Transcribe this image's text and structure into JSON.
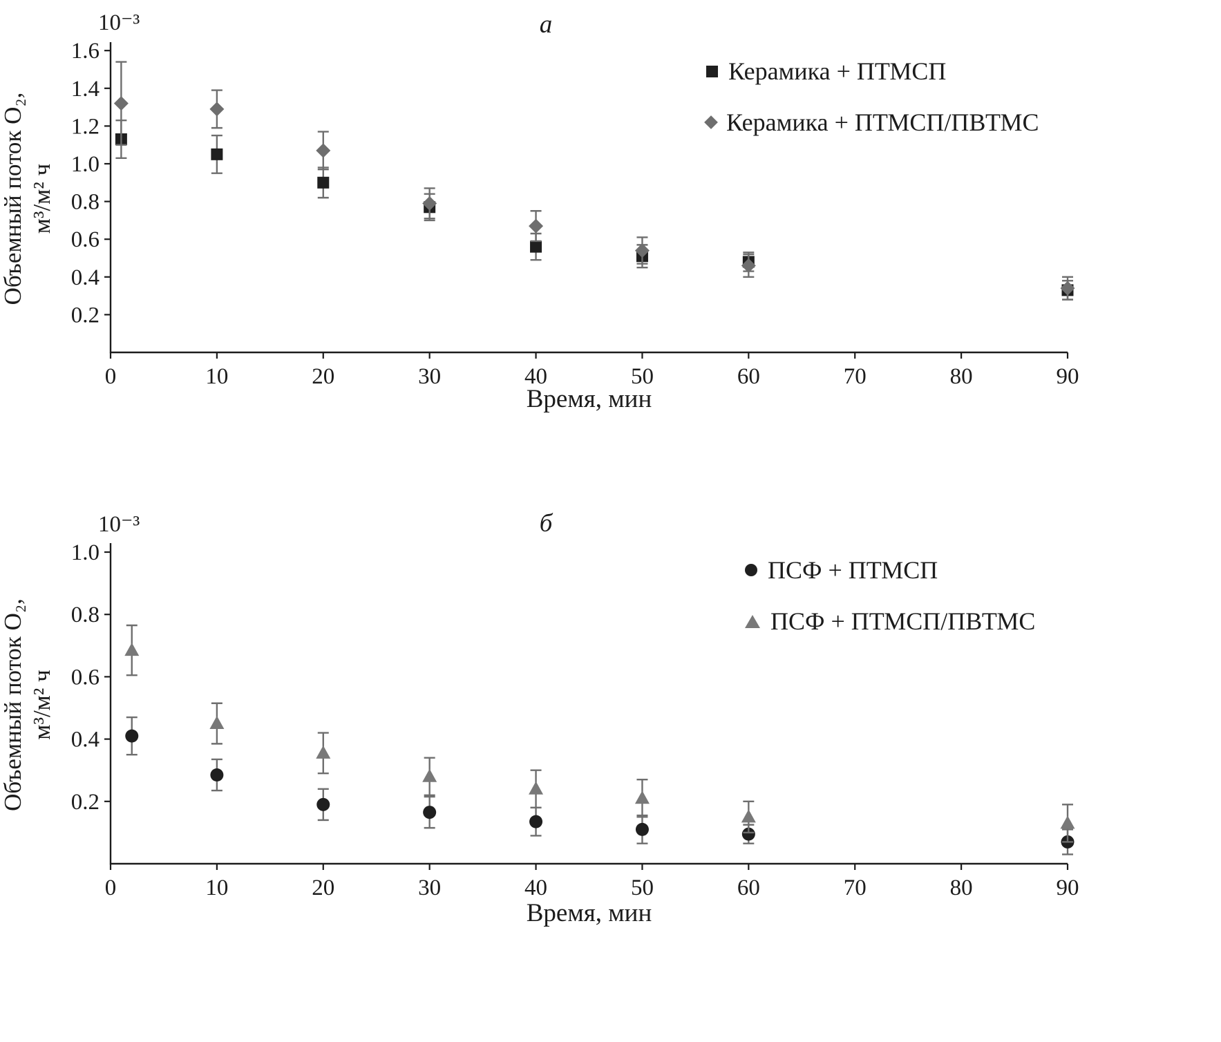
{
  "style": {
    "background": "#ffffff",
    "axis_color": "#1c1c1c",
    "error_bar_color": "#6e6e6e"
  },
  "chart_data": [
    {
      "type": "scatter",
      "title": "а",
      "xlabel": "Время, мин",
      "ylabel_line1": "Объемный поток O₂,",
      "ylabel_line2": "м³/м² ч",
      "y_scale_label": "10⁻³",
      "xlim": [
        0,
        90
      ],
      "ylim": [
        0,
        1.63
      ],
      "xticks": [
        0,
        10,
        20,
        30,
        40,
        50,
        60,
        70,
        80,
        90
      ],
      "yticks": [
        0.2,
        0.4,
        0.6,
        0.8,
        1.0,
        1.2,
        1.4,
        1.6
      ],
      "x": [
        1,
        10,
        20,
        30,
        40,
        50,
        60,
        90
      ],
      "grid": false,
      "legend_position": "top-right",
      "series": [
        {
          "name": "Керамика + ПТМСП",
          "marker": "square",
          "color": "#1f1f1f",
          "values": [
            1.13,
            1.05,
            0.9,
            0.77,
            0.56,
            0.51,
            0.48,
            0.33
          ],
          "errors": [
            0.1,
            0.1,
            0.08,
            0.07,
            0.07,
            0.06,
            0.05,
            0.05
          ]
        },
        {
          "name": "Керамика + ПТМСП/ПВТМС",
          "marker": "diamond",
          "color": "#6e6e6e",
          "values": [
            1.32,
            1.29,
            1.07,
            0.79,
            0.67,
            0.54,
            0.46,
            0.34
          ],
          "errors": [
            0.22,
            0.1,
            0.1,
            0.08,
            0.08,
            0.07,
            0.06,
            0.06
          ]
        }
      ]
    },
    {
      "type": "scatter",
      "title": "б",
      "xlabel": "Время, мин",
      "ylabel_line1": "Объемный поток O₂,",
      "ylabel_line2": "м³/м² ч",
      "y_scale_label": "10⁻³",
      "xlim": [
        0,
        90
      ],
      "ylim": [
        0,
        1.02
      ],
      "xticks": [
        0,
        10,
        20,
        30,
        40,
        50,
        60,
        70,
        80,
        90
      ],
      "yticks": [
        0.2,
        0.4,
        0.6,
        0.8,
        1.0
      ],
      "x": [
        2,
        10,
        20,
        30,
        40,
        50,
        60,
        90
      ],
      "grid": false,
      "legend_position": "top-right",
      "series": [
        {
          "name": "ПСФ + ПТМСП",
          "marker": "circle",
          "color": "#1f1f1f",
          "values": [
            0.41,
            0.285,
            0.19,
            0.165,
            0.135,
            0.11,
            0.095,
            0.07
          ],
          "errors": [
            0.06,
            0.05,
            0.05,
            0.05,
            0.045,
            0.045,
            0.03,
            0.04
          ]
        },
        {
          "name": "ПСФ + ПТМСП/ПВТМС",
          "marker": "triangle",
          "color": "#787878",
          "values": [
            0.685,
            0.45,
            0.355,
            0.28,
            0.24,
            0.21,
            0.15,
            0.13
          ],
          "errors": [
            0.08,
            0.065,
            0.065,
            0.06,
            0.06,
            0.06,
            0.05,
            0.06
          ]
        }
      ]
    }
  ]
}
